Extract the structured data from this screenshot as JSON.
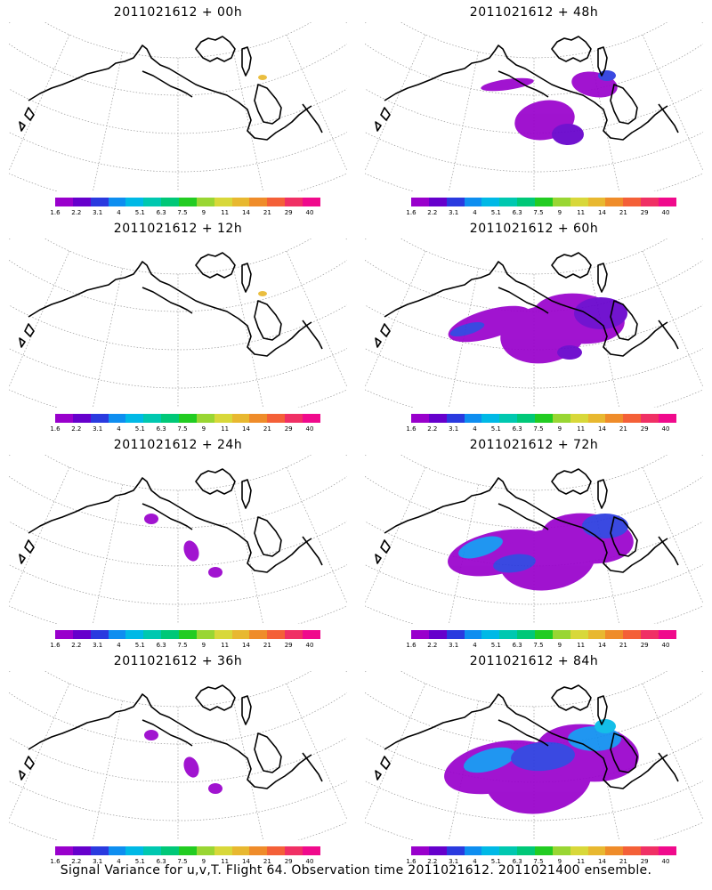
{
  "panels": [
    {
      "title": "2011021612 + 00h",
      "level": 0
    },
    {
      "title": "2011021612 + 48h",
      "level": 2
    },
    {
      "title": "2011021612 + 12h",
      "level": 0
    },
    {
      "title": "2011021612 + 60h",
      "level": 3
    },
    {
      "title": "2011021612 + 24h",
      "level": 1
    },
    {
      "title": "2011021612 + 72h",
      "level": 4
    },
    {
      "title": "2011021612 + 36h",
      "level": 1
    },
    {
      "title": "2011021612 + 84h",
      "level": 5
    }
  ],
  "colorbar": {
    "colors": [
      "#9900cc",
      "#6600cc",
      "#2a3adf",
      "#0e8ef0",
      "#00b9e6",
      "#00c8b0",
      "#00c878",
      "#22cc22",
      "#99d633",
      "#d8d83a",
      "#e8b830",
      "#ef8c2a",
      "#f46038",
      "#f03065",
      "#f00a8c"
    ],
    "labels": [
      "1.6",
      "2.2",
      "3.1",
      "4",
      "5.1",
      "6.3",
      "7.5",
      "9",
      "11",
      "14",
      "21",
      "29",
      "40"
    ]
  },
  "caption": "Signal Variance for u,v,T. Flight 64. Observation time 2011021612. 2011021400 ensemble."
}
